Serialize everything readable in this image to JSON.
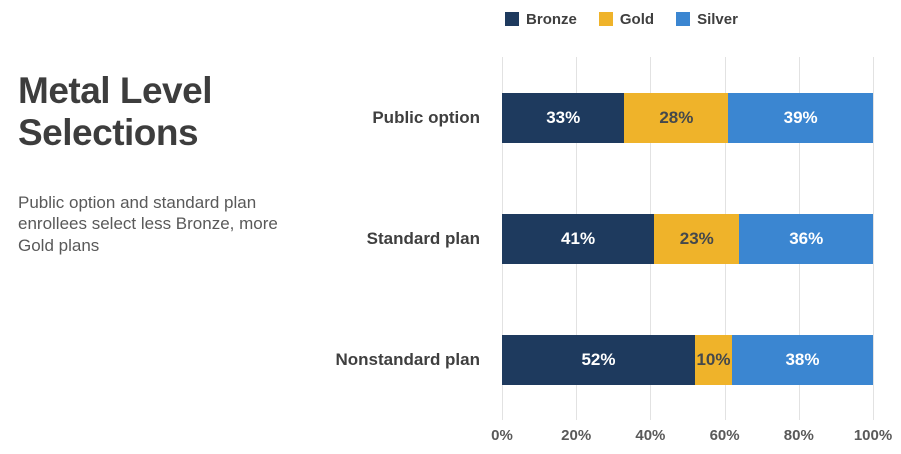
{
  "title": "Metal Level Selections",
  "subtitle": "Public option and standard plan enrollees select less Bronze, more Gold plans",
  "chart_data": {
    "type": "bar",
    "stacked": true,
    "orientation": "horizontal",
    "title": "Metal Level Selections",
    "categories": [
      "Public option",
      "Standard plan",
      "Nonstandard plan"
    ],
    "series": [
      {
        "name": "Bronze",
        "color": "#1e3a5e",
        "label_color": "#ffffff",
        "values": [
          33,
          41,
          52
        ]
      },
      {
        "name": "Gold",
        "color": "#efb32a",
        "label_color": "#44484c",
        "values": [
          28,
          23,
          10
        ]
      },
      {
        "name": "Silver",
        "color": "#3b86d1",
        "label_color": "#ffffff",
        "values": [
          39,
          36,
          38
        ]
      }
    ],
    "value_suffix": "%",
    "xlim": [
      0,
      100
    ],
    "x_ticks": [
      "0%",
      "20%",
      "40%",
      "60%",
      "80%",
      "100%"
    ],
    "legend_position": "top",
    "legend_entries": [
      "Bronze",
      "Gold",
      "Silver"
    ],
    "grid": true
  },
  "colors": {
    "background": "#ffffff",
    "title": "#3d3d3d",
    "subtitle": "#595959",
    "category_label": "#3f3f3f",
    "axis_label": "#595959",
    "gridline": "#e2e2e2"
  }
}
